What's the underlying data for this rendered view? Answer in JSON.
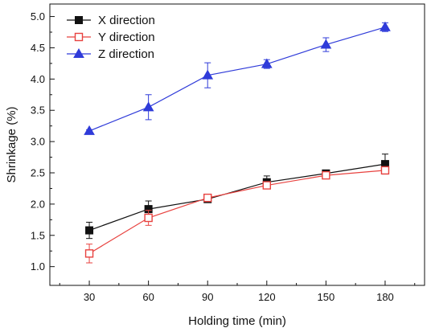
{
  "chart_data": {
    "type": "line",
    "xlabel": "Holding time (min)",
    "ylabel": "Shrinkage (%)",
    "x": [
      30,
      60,
      90,
      120,
      150,
      180
    ],
    "xlim": [
      10,
      200
    ],
    "ylim": [
      0.7,
      5.2
    ],
    "xticks": [
      "30",
      "60",
      "90",
      "120",
      "150",
      "180"
    ],
    "yticks": [
      "1.0",
      "1.5",
      "2.0",
      "2.5",
      "3.0",
      "3.5",
      "4.0",
      "4.5",
      "5.0"
    ],
    "legend_position": "top-left",
    "series": [
      {
        "name": "X direction",
        "color": "#111111",
        "marker": "filled-square",
        "values": [
          1.58,
          1.92,
          2.08,
          2.35,
          2.49,
          2.64
        ],
        "errors": [
          0.13,
          0.13,
          0.05,
          0.1,
          0.04,
          0.16
        ]
      },
      {
        "name": "Y direction",
        "color": "#e8423f",
        "marker": "open-square",
        "values": [
          1.21,
          1.78,
          2.1,
          2.3,
          2.46,
          2.54
        ],
        "errors": [
          0.15,
          0.12,
          0.05,
          0.05,
          0.05,
          0.05
        ]
      },
      {
        "name": "Z direction",
        "color": "#2f3bd9",
        "marker": "filled-triangle",
        "values": [
          3.17,
          3.55,
          4.06,
          4.24,
          4.55,
          4.83
        ],
        "errors": [
          0.02,
          0.2,
          0.2,
          0.07,
          0.11,
          0.07
        ]
      }
    ]
  }
}
